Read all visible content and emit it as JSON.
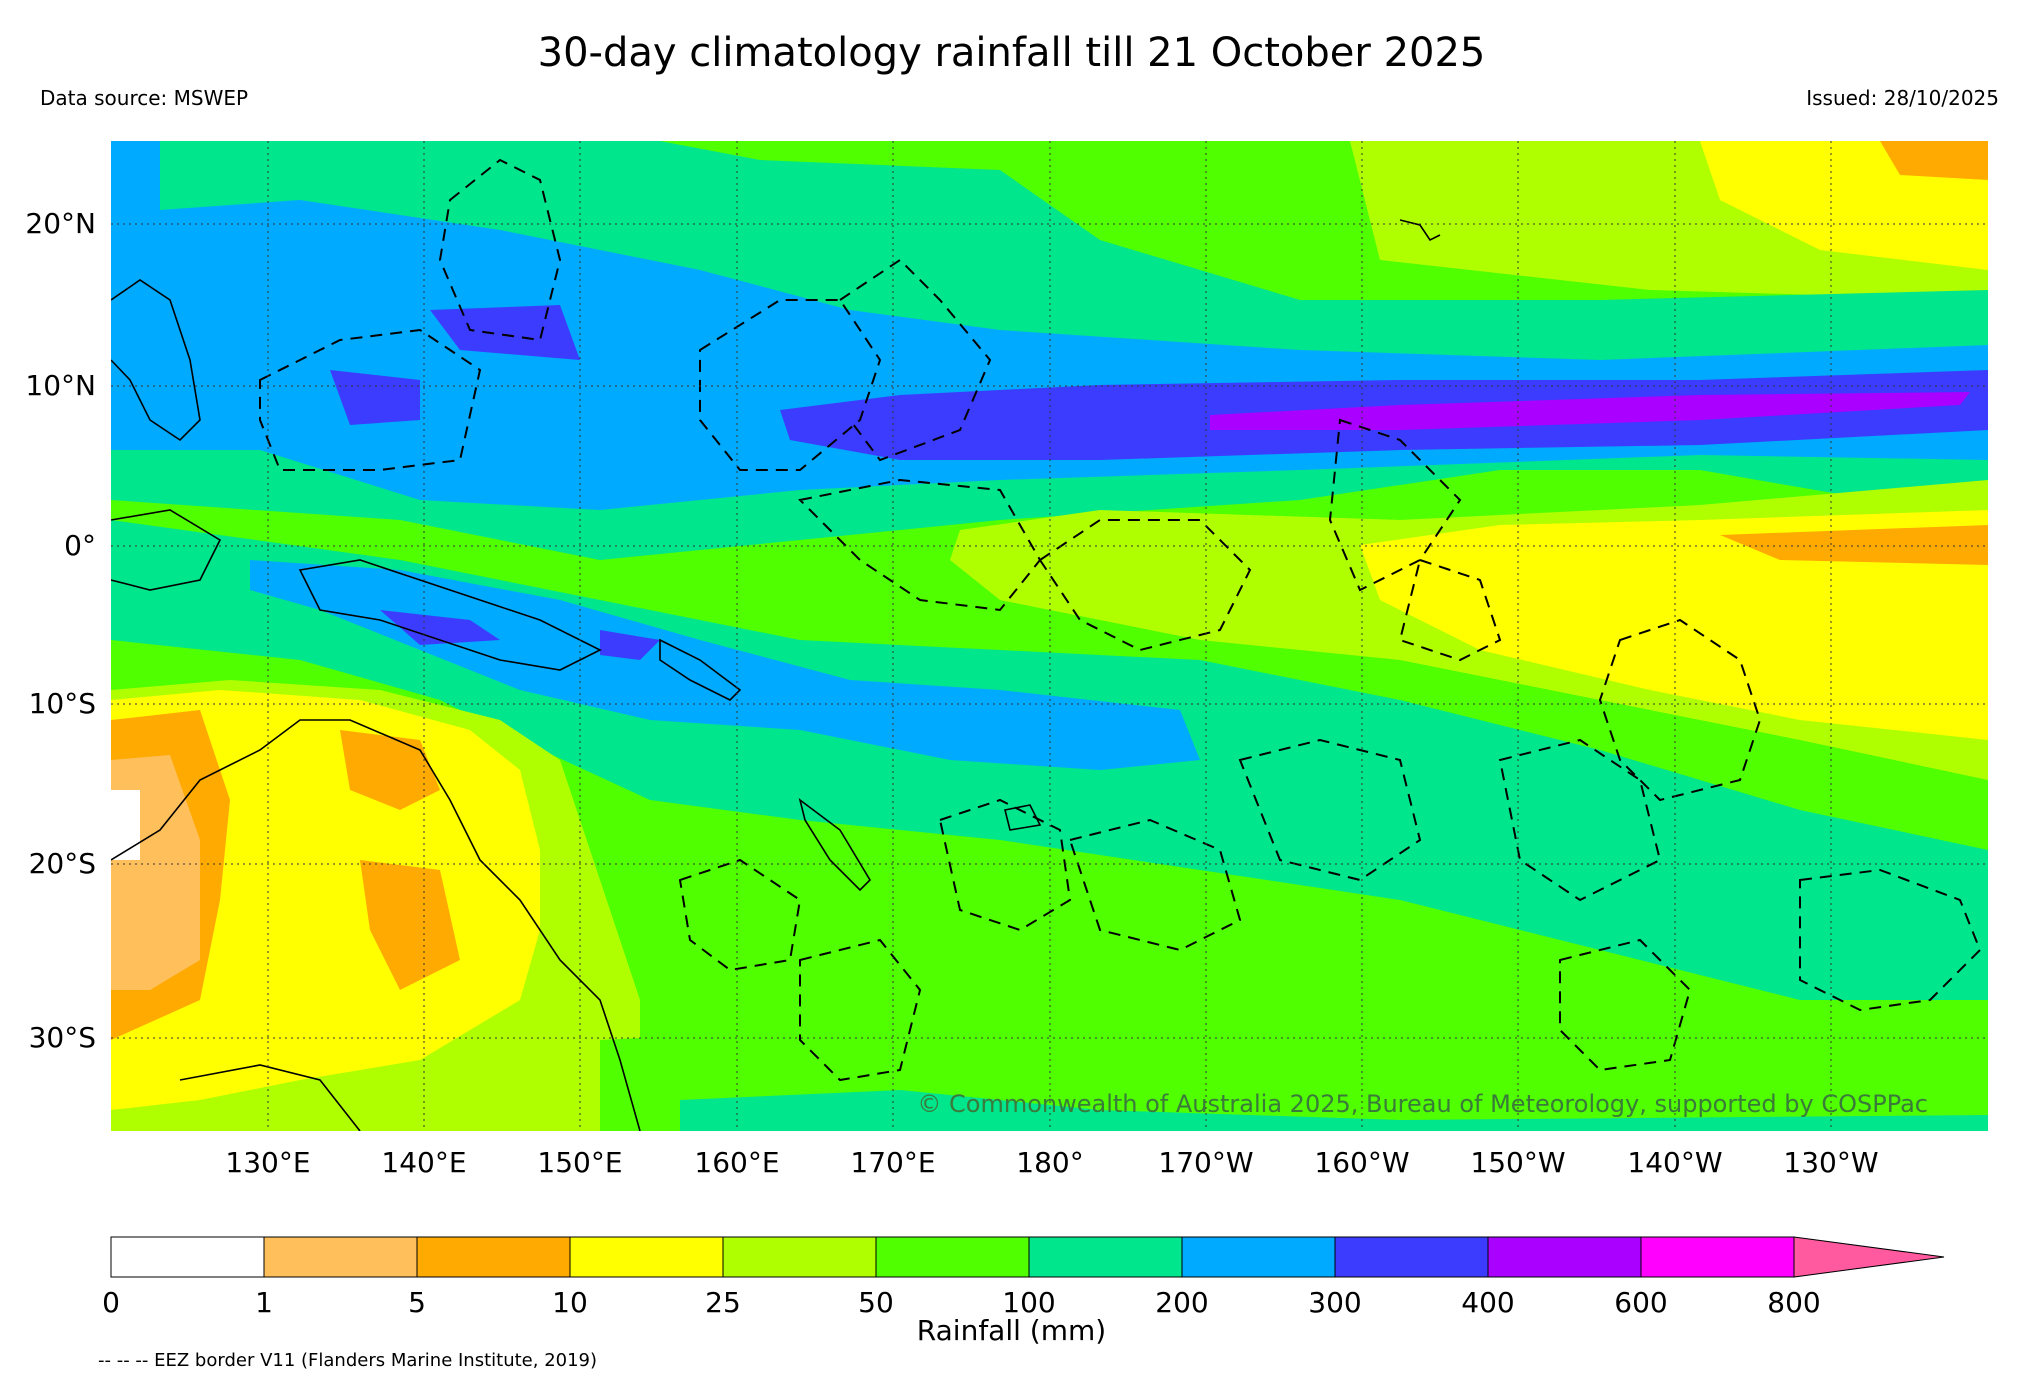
{
  "title": "30-day climatology rainfall till 21 October 2025",
  "data_source": "Data source: MSWEP",
  "issued": "Issued: 28/10/2025",
  "credit": "© Commonwealth of Australia 2025, Bureau of Meteorology, supported by COSPPac",
  "lat_labels": [
    "20°N",
    "10°N",
    "0°",
    "10°S",
    "20°S",
    "30°S"
  ],
  "lon_labels": [
    "130°E",
    "140°E",
    "150°E",
    "160°E",
    "170°E",
    "180°",
    "170°W",
    "160°W",
    "150°W",
    "140°W",
    "130°W"
  ],
  "colorbar": {
    "label": "Rainfall (mm)",
    "ticks": [
      "0",
      "1",
      "5",
      "10",
      "25",
      "50",
      "100",
      "200",
      "300",
      "400",
      "600",
      "800"
    ],
    "colors": [
      "#ffffff",
      "#ffbf5a",
      "#ffaa00",
      "#ffff00",
      "#b0ff00",
      "#50ff00",
      "#00e68c",
      "#00aaff",
      "#3c3cff",
      "#aa00ff",
      "#ff00ff",
      "#ff5aa0"
    ]
  },
  "eez_note": "-- -- -- EEZ border V11 (Flanders Marine Institute, 2019)"
}
